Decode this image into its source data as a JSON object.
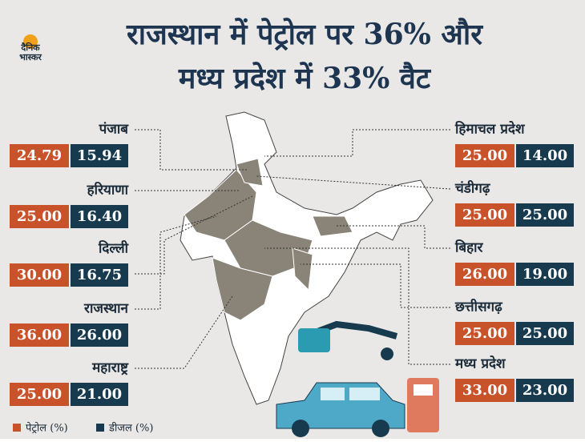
{
  "logo": {
    "line1": "दैनिक",
    "line2": "भास्कर"
  },
  "header": {
    "line1": "राजस्थान में पेट्रोल पर 36% और",
    "line2": "मध्य प्रदेश में 33% वैट"
  },
  "left_states": [
    {
      "name": "पंजाब",
      "petrol": "24.79",
      "diesel": "15.94"
    },
    {
      "name": "हरियाणा",
      "petrol": "25.00",
      "diesel": "16.40"
    },
    {
      "name": "दिल्ली",
      "petrol": "30.00",
      "diesel": "16.75"
    },
    {
      "name": "राजस्थान",
      "petrol": "36.00",
      "diesel": "26.00"
    },
    {
      "name": "महाराष्ट्र",
      "petrol": "25.00",
      "diesel": "21.00"
    }
  ],
  "right_states": [
    {
      "name": "हिमाचल प्रदेश",
      "petrol": "25.00",
      "diesel": "14.00"
    },
    {
      "name": "चंडीगढ़",
      "petrol": "25.00",
      "diesel": "25.00"
    },
    {
      "name": "बिहार",
      "petrol": "26.00",
      "diesel": "19.00"
    },
    {
      "name": "छत्तीसगढ़",
      "petrol": "25.00",
      "diesel": "25.00"
    },
    {
      "name": "मध्य प्रदेश",
      "petrol": "33.00",
      "diesel": "23.00"
    }
  ],
  "legend": {
    "petrol": "पेट्रोल (%)",
    "diesel": "डीजल (%)"
  }
}
